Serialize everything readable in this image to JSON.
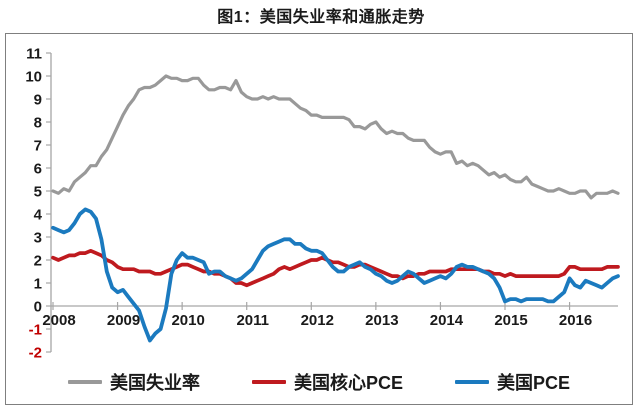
{
  "title": "图1：美国失业率和通胀走势",
  "colors": {
    "unemployment": "#999999",
    "core_pce": "#bf1a1f",
    "pce": "#1b7abf",
    "axis": "#a6a6a6",
    "tick_label": "#1a1a1a",
    "negative_tick_label": "#c00000",
    "box_border": "#7f7f7f"
  },
  "legend": [
    {
      "key": "unemployment",
      "label": "美国失业率",
      "color": "#999999"
    },
    {
      "key": "core_pce",
      "label": "美国核心PCE",
      "color": "#bf1a1f"
    },
    {
      "key": "pce",
      "label": "美国PCE",
      "color": "#1b7abf"
    }
  ],
  "y_axis": {
    "ticks": [
      11,
      10,
      9,
      8,
      7,
      6,
      5,
      4,
      3,
      2,
      1,
      0,
      -1,
      -2
    ]
  },
  "x_axis": {
    "ticks": [
      "2008",
      "2009",
      "2010",
      "2011",
      "2012",
      "2013",
      "2014",
      "2015",
      "2016"
    ]
  },
  "chart_data": {
    "type": "line",
    "title": "图1：美国失业率和通胀走势",
    "x_start": "2008-01",
    "x_end": "2016-10",
    "x_freq": "monthly",
    "x_tick_labels": [
      "2008",
      "2009",
      "2010",
      "2011",
      "2012",
      "2013",
      "2014",
      "2015",
      "2016"
    ],
    "ylim": [
      -2,
      11
    ],
    "y_tick_step": 1,
    "grid": false,
    "legend_position": "bottom",
    "series": [
      {
        "name": "美国失业率",
        "key": "unemployment",
        "color": "#999999",
        "values": [
          5.0,
          4.9,
          5.1,
          5.0,
          5.4,
          5.6,
          5.8,
          6.1,
          6.1,
          6.5,
          6.8,
          7.3,
          7.8,
          8.3,
          8.7,
          9.0,
          9.4,
          9.5,
          9.5,
          9.6,
          9.8,
          10.0,
          9.9,
          9.9,
          9.8,
          9.8,
          9.9,
          9.9,
          9.6,
          9.4,
          9.4,
          9.5,
          9.5,
          9.4,
          9.8,
          9.3,
          9.1,
          9.0,
          9.0,
          9.1,
          9.0,
          9.1,
          9.0,
          9.0,
          9.0,
          8.8,
          8.6,
          8.5,
          8.3,
          8.3,
          8.2,
          8.2,
          8.2,
          8.2,
          8.2,
          8.1,
          7.8,
          7.8,
          7.7,
          7.9,
          8.0,
          7.7,
          7.5,
          7.6,
          7.5,
          7.5,
          7.3,
          7.2,
          7.2,
          7.2,
          6.9,
          6.7,
          6.6,
          6.7,
          6.7,
          6.2,
          6.3,
          6.1,
          6.2,
          6.1,
          5.9,
          5.7,
          5.8,
          5.6,
          5.7,
          5.5,
          5.4,
          5.4,
          5.6,
          5.3,
          5.2,
          5.1,
          5.0,
          5.0,
          5.1,
          5.0,
          4.9,
          4.9,
          5.0,
          5.0,
          4.7,
          4.9,
          4.9,
          4.9,
          5.0,
          4.9
        ]
      },
      {
        "name": "美国核心PCE",
        "key": "core_pce",
        "color": "#bf1a1f",
        "values": [
          2.1,
          2.0,
          2.1,
          2.2,
          2.2,
          2.3,
          2.3,
          2.4,
          2.3,
          2.2,
          2.0,
          1.9,
          1.7,
          1.6,
          1.6,
          1.6,
          1.5,
          1.5,
          1.5,
          1.4,
          1.4,
          1.5,
          1.6,
          1.7,
          1.8,
          1.8,
          1.7,
          1.6,
          1.5,
          1.5,
          1.4,
          1.4,
          1.3,
          1.2,
          1.0,
          1.0,
          0.9,
          1.0,
          1.1,
          1.2,
          1.3,
          1.4,
          1.6,
          1.7,
          1.6,
          1.7,
          1.8,
          1.9,
          2.0,
          2.0,
          2.1,
          2.0,
          1.9,
          1.9,
          1.8,
          1.7,
          1.7,
          1.8,
          1.8,
          1.7,
          1.6,
          1.5,
          1.4,
          1.3,
          1.3,
          1.2,
          1.3,
          1.3,
          1.4,
          1.4,
          1.5,
          1.5,
          1.5,
          1.5,
          1.6,
          1.6,
          1.6,
          1.6,
          1.6,
          1.6,
          1.5,
          1.5,
          1.4,
          1.4,
          1.3,
          1.4,
          1.3,
          1.3,
          1.3,
          1.3,
          1.3,
          1.3,
          1.3,
          1.3,
          1.3,
          1.4,
          1.7,
          1.7,
          1.6,
          1.6,
          1.6,
          1.6,
          1.6,
          1.7,
          1.7,
          1.7
        ]
      },
      {
        "name": "美国PCE",
        "key": "pce",
        "color": "#1b7abf",
        "values": [
          3.4,
          3.3,
          3.2,
          3.3,
          3.6,
          4.0,
          4.2,
          4.1,
          3.8,
          2.9,
          1.5,
          0.8,
          0.6,
          0.7,
          0.4,
          0.1,
          -0.2,
          -0.9,
          -1.5,
          -1.2,
          -1.0,
          -0.1,
          1.4,
          2.0,
          2.3,
          2.1,
          2.1,
          2.0,
          1.9,
          1.4,
          1.5,
          1.5,
          1.3,
          1.2,
          1.1,
          1.2,
          1.4,
          1.6,
          2.0,
          2.4,
          2.6,
          2.7,
          2.8,
          2.9,
          2.9,
          2.7,
          2.7,
          2.5,
          2.4,
          2.4,
          2.3,
          2.0,
          1.7,
          1.5,
          1.5,
          1.7,
          1.8,
          1.9,
          1.7,
          1.6,
          1.4,
          1.3,
          1.1,
          1.0,
          1.1,
          1.3,
          1.5,
          1.4,
          1.2,
          1.0,
          1.1,
          1.2,
          1.3,
          1.2,
          1.4,
          1.7,
          1.8,
          1.7,
          1.7,
          1.6,
          1.5,
          1.4,
          1.2,
          0.8,
          0.2,
          0.3,
          0.3,
          0.2,
          0.3,
          0.3,
          0.3,
          0.3,
          0.2,
          0.2,
          0.4,
          0.6,
          1.2,
          0.9,
          0.8,
          1.1,
          1.0,
          0.9,
          0.8,
          1.0,
          1.2,
          1.3
        ]
      }
    ]
  }
}
